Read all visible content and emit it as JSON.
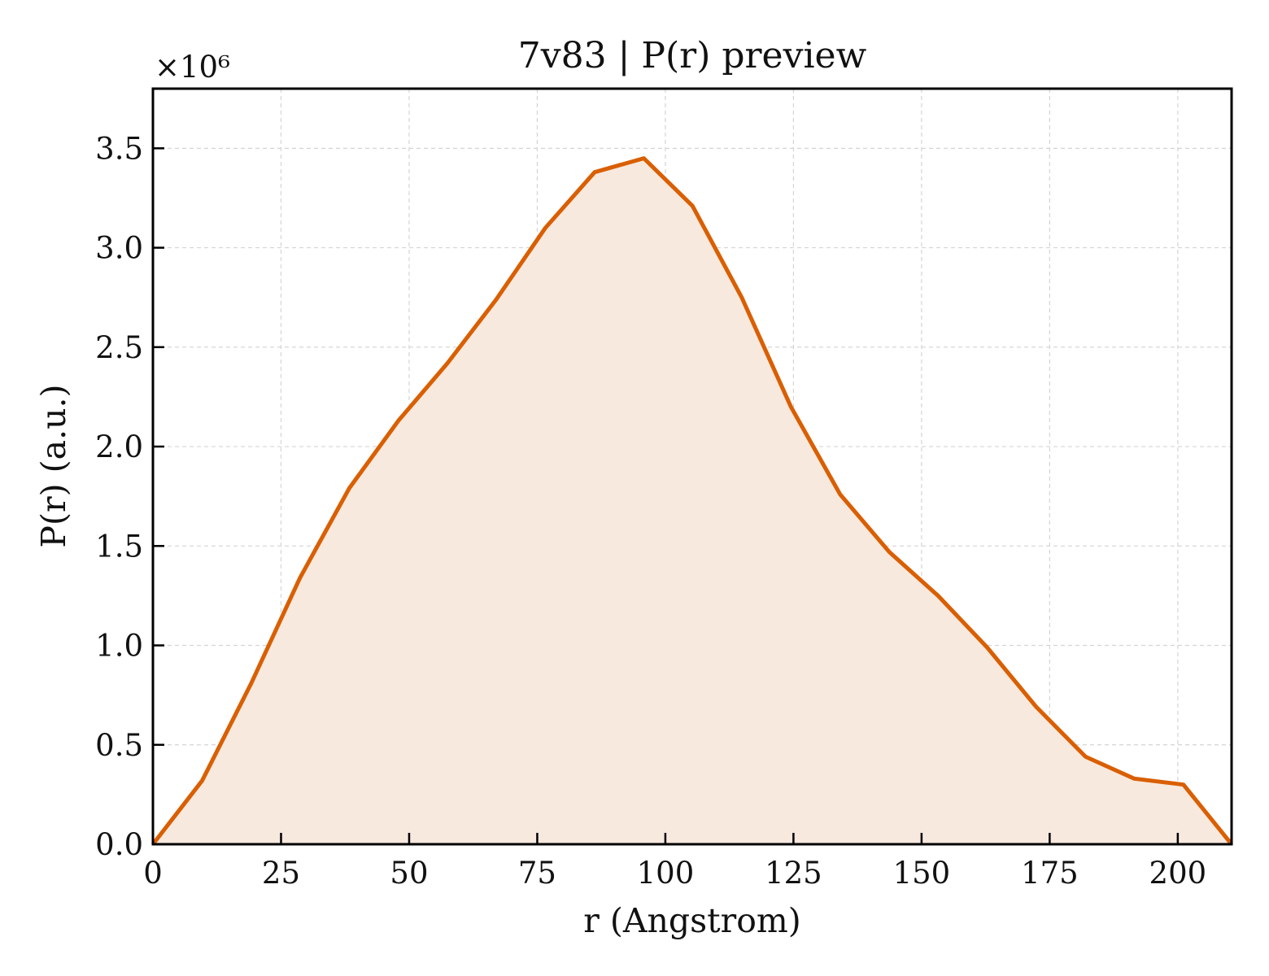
{
  "chart_data": {
    "type": "area",
    "title": "7v83 | P(r) preview",
    "xlabel": "r (Angstrom)",
    "ylabel": "P(r) (a.u.)",
    "y_offset_label": "×10⁶",
    "y_multiplier": 1000000,
    "xlim": [
      0,
      210.5
    ],
    "ylim": [
      0,
      3.8
    ],
    "x_ticks": [
      0,
      25,
      50,
      75,
      100,
      125,
      150,
      175,
      200
    ],
    "y_ticks": [
      0.0,
      0.5,
      1.0,
      1.5,
      2.0,
      2.5,
      3.0,
      3.5
    ],
    "grid": true,
    "line_color": "#d95f02",
    "fill_color": "#f8e9df",
    "series": [
      {
        "x": [
          0,
          9.6,
          19.2,
          28.7,
          38.3,
          47.9,
          57.5,
          67.0,
          76.6,
          86.2,
          95.8,
          105.3,
          114.9,
          124.5,
          134.1,
          143.7,
          153.2,
          162.8,
          172.4,
          182.0,
          191.5,
          201.1,
          210.5
        ],
        "y": [
          0.0,
          0.32,
          0.81,
          1.34,
          1.79,
          2.13,
          2.42,
          2.74,
          3.1,
          3.38,
          3.45,
          3.21,
          2.75,
          2.2,
          1.76,
          1.47,
          1.25,
          0.99,
          0.69,
          0.44,
          0.33,
          0.3,
          0.0
        ]
      }
    ]
  }
}
